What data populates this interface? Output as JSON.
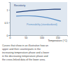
{
  "chart_data": {
    "type": "line",
    "x_label": "Temperature (°C)",
    "x": [
      20,
      40,
      60,
      80,
      100,
      120,
      140,
      160
    ],
    "series": [
      {
        "name": "Resistivity",
        "color": "#1f3f7a",
        "values": [
          0.9,
          0.93,
          0.96,
          0.98,
          1.0,
          1.01,
          1.02,
          1.02
        ]
      },
      {
        "name": "Permeability (standardized)",
        "color": "#5b8fc7",
        "values": [
          0.75,
          0.76,
          0.76,
          0.75,
          0.72,
          0.68,
          0.62,
          0.55
        ]
      }
    ],
    "xlim": [
      0,
      180
    ],
    "xticks": [
      0,
      50,
      100,
      150
    ],
    "ylim": [
      0,
      1.3
    ],
    "yticks": [
      0,
      0.5,
      1
    ],
    "grid": false,
    "annotations": [
      "Curves that show in an illustrative how an",
      "upper and their counterparts in the",
      "increasing temperature phase and a lower",
      "in the decreasing temperature phase and",
      "the cross-linked data of the lower area."
    ]
  }
}
